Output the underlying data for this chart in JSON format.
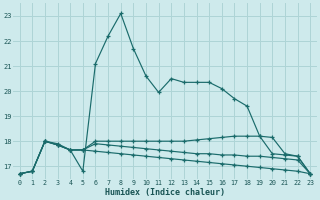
{
  "xlabel": "Humidex (Indice chaleur)",
  "background_color": "#ceeaec",
  "grid_color": "#aed4d6",
  "line_color": "#1a6b6b",
  "xlim": [
    -0.5,
    23.5
  ],
  "ylim": [
    16.5,
    23.5
  ],
  "yticks": [
    17,
    18,
    19,
    20,
    21,
    22,
    23
  ],
  "xticks": [
    0,
    1,
    2,
    3,
    4,
    5,
    6,
    7,
    8,
    9,
    10,
    11,
    12,
    13,
    14,
    15,
    16,
    17,
    18,
    19,
    20,
    21,
    22,
    23
  ],
  "line1_y": [
    16.7,
    16.8,
    18.0,
    17.9,
    17.65,
    16.8,
    21.1,
    22.2,
    23.1,
    21.7,
    20.6,
    19.95,
    20.5,
    20.35,
    20.35,
    20.35,
    20.1,
    19.7,
    19.4,
    18.2,
    18.15,
    17.5,
    17.4,
    16.7
  ],
  "line2_y": [
    16.7,
    16.8,
    18.0,
    17.85,
    17.65,
    17.65,
    18.0,
    18.0,
    18.0,
    18.0,
    18.0,
    18.0,
    18.0,
    18.0,
    18.05,
    18.1,
    18.15,
    18.2,
    18.2,
    18.2,
    17.5,
    17.45,
    17.4,
    16.7
  ],
  "line3_y": [
    16.7,
    16.8,
    18.0,
    17.85,
    17.65,
    17.65,
    17.9,
    17.85,
    17.8,
    17.75,
    17.7,
    17.65,
    17.6,
    17.55,
    17.5,
    17.5,
    17.45,
    17.45,
    17.4,
    17.4,
    17.35,
    17.3,
    17.25,
    16.7
  ],
  "line4_y": [
    16.7,
    16.8,
    18.0,
    17.85,
    17.65,
    17.65,
    17.6,
    17.55,
    17.5,
    17.45,
    17.4,
    17.35,
    17.3,
    17.25,
    17.2,
    17.15,
    17.1,
    17.05,
    17.0,
    16.95,
    16.9,
    16.85,
    16.8,
    16.7
  ]
}
